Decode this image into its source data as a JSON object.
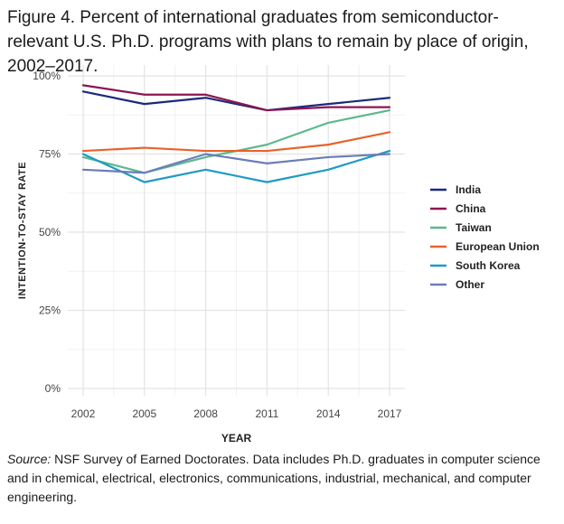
{
  "figure": {
    "title": "Figure 4. Percent of international graduates from semiconductor-relevant U.S. Ph.D. programs with plans to remain by place of origin, 2002–2017.",
    "source_label": "Source:",
    "source_text": " NSF Survey of Earned Doctorates. Data includes Ph.D. graduates in computer science and in chemical, electrical, electronics, communications, industrial, mechanical, and computer engineering."
  },
  "chart_data": {
    "type": "line",
    "title": "",
    "xlabel": "YEAR",
    "ylabel": "INTENTION-TO-STAY RATE",
    "x": [
      2002,
      2005,
      2008,
      2011,
      2014,
      2017
    ],
    "xlim": [
      2002,
      2017
    ],
    "ylim": [
      0,
      100
    ],
    "ytick_values": [
      0,
      25,
      50,
      75,
      100
    ],
    "ytick_labels": [
      "0%",
      "25%",
      "50%",
      "75%",
      "100%"
    ],
    "xtick_labels": [
      "2002",
      "2005",
      "2008",
      "2011",
      "2014",
      "2017"
    ],
    "grid": true,
    "legend_position": "right",
    "series": [
      {
        "name": "India",
        "color": "#1a2a7c",
        "values": [
          95,
          91,
          93,
          89,
          91,
          93
        ]
      },
      {
        "name": "China",
        "color": "#8e1450",
        "values": [
          97,
          94,
          94,
          89,
          90,
          90
        ]
      },
      {
        "name": "Taiwan",
        "color": "#5cb88e",
        "values": [
          74,
          69,
          74,
          78,
          85,
          89
        ]
      },
      {
        "name": "European Union",
        "color": "#e8622a",
        "values": [
          76,
          77,
          76,
          76,
          78,
          82
        ]
      },
      {
        "name": "South Korea",
        "color": "#1f9bc1",
        "values": [
          75,
          66,
          70,
          66,
          70,
          76
        ]
      },
      {
        "name": "Other",
        "color": "#6a7db8",
        "values": [
          70,
          69,
          75,
          72,
          74,
          75
        ]
      }
    ]
  }
}
